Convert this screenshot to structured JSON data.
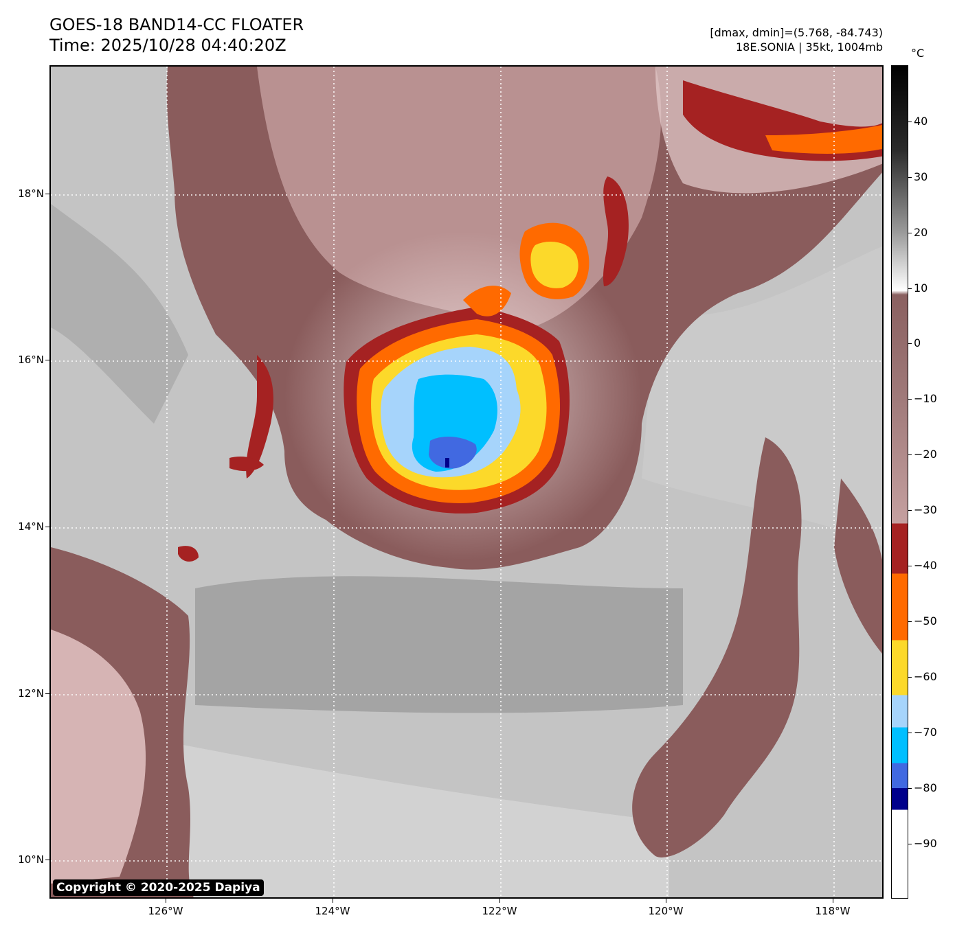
{
  "header": {
    "title_line1": "GOES-18 BAND14-CC FLOATER",
    "title_line2": "Time: 2025/10/28 04:40:20Z",
    "info_line1": "[dmax, dmin]=(5.768, -84.743)",
    "info_line2": "18E.SONIA | 35kt, 1004mb"
  },
  "map": {
    "lat_labels": [
      "18°N",
      "16°N",
      "14°N",
      "12°N",
      "10°N"
    ],
    "lon_labels": [
      "126°W",
      "124°W",
      "122°W",
      "120°W",
      "118°W"
    ],
    "copyright": "Copyright © 2020-2025 Dapiya"
  },
  "colorbar": {
    "unit": "°C",
    "ticks": [
      "40",
      "30",
      "20",
      "10",
      "0",
      "−10",
      "−20",
      "−30",
      "−40",
      "−50",
      "−60",
      "−70",
      "−80",
      "−90"
    ],
    "colors": {
      "warm_black": "#000000",
      "gray_white": "#ffffff",
      "brown": "#8a6060",
      "pink": "#f2dede",
      "dark_red": "#a52222",
      "orange": "#ff6a00",
      "yellow": "#fcd92a",
      "light_blue": "#a6d4fb",
      "cyan": "#00bfff",
      "royal_blue": "#4169e1",
      "navy": "#00008b"
    }
  }
}
